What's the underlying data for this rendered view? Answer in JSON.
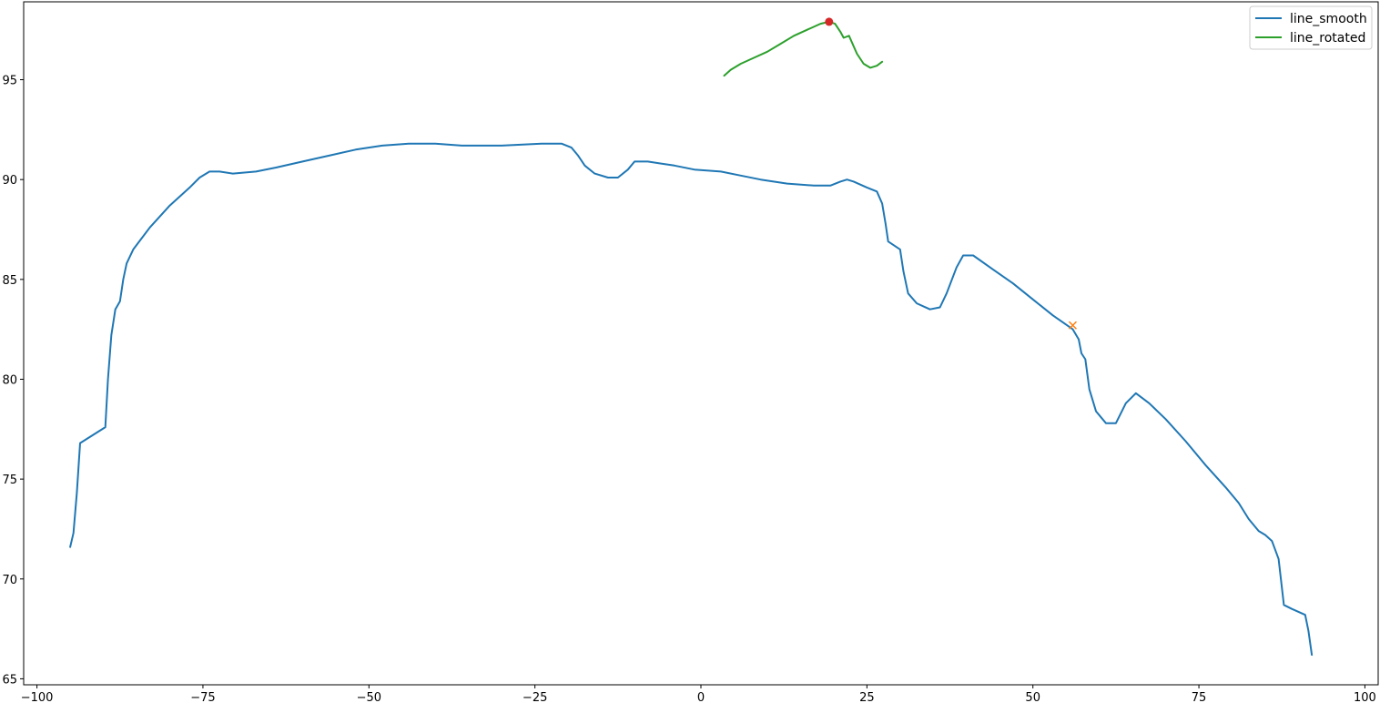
{
  "chart_data": {
    "type": "line",
    "title": "",
    "xlabel": "",
    "ylabel": "",
    "xlim": [
      -102,
      102
    ],
    "ylim": [
      64.7,
      98.9
    ],
    "x_ticks": [
      {
        "value": -100,
        "label": "−100"
      },
      {
        "value": -75,
        "label": "−75"
      },
      {
        "value": -50,
        "label": "−50"
      },
      {
        "value": -25,
        "label": "−25"
      },
      {
        "value": 0,
        "label": "0"
      },
      {
        "value": 25,
        "label": "25"
      },
      {
        "value": 50,
        "label": "50"
      },
      {
        "value": 75,
        "label": "75"
      },
      {
        "value": 100,
        "label": "100"
      }
    ],
    "y_ticks": [
      {
        "value": 65,
        "label": "65"
      },
      {
        "value": 70,
        "label": "70"
      },
      {
        "value": 75,
        "label": "75"
      },
      {
        "value": 80,
        "label": "80"
      },
      {
        "value": 85,
        "label": "85"
      },
      {
        "value": 90,
        "label": "90"
      },
      {
        "value": 95,
        "label": "95"
      }
    ],
    "grid": false,
    "legend_position": "top-right",
    "series": [
      {
        "name": "line_smooth",
        "color": "#1f77b4",
        "points": [
          [
            -95.0,
            71.6
          ],
          [
            -94.5,
            72.3
          ],
          [
            -94.0,
            74.3
          ],
          [
            -93.5,
            76.8
          ],
          [
            -89.7,
            77.6
          ],
          [
            -89.3,
            80.0
          ],
          [
            -88.8,
            82.2
          ],
          [
            -88.2,
            83.5
          ],
          [
            -87.5,
            83.9
          ],
          [
            -87.0,
            85.0
          ],
          [
            -86.5,
            85.8
          ],
          [
            -85.5,
            86.5
          ],
          [
            -83.0,
            87.6
          ],
          [
            -80.0,
            88.7
          ],
          [
            -77.0,
            89.6
          ],
          [
            -75.5,
            90.1
          ],
          [
            -74.0,
            90.4
          ],
          [
            -72.5,
            90.4
          ],
          [
            -70.5,
            90.3
          ],
          [
            -67.0,
            90.4
          ],
          [
            -64.0,
            90.6
          ],
          [
            -60.0,
            90.9
          ],
          [
            -56.0,
            91.2
          ],
          [
            -52.0,
            91.5
          ],
          [
            -48.0,
            91.7
          ],
          [
            -44.0,
            91.8
          ],
          [
            -40.0,
            91.8
          ],
          [
            -36.0,
            91.7
          ],
          [
            -30.0,
            91.7
          ],
          [
            -24.0,
            91.8
          ],
          [
            -21.0,
            91.8
          ],
          [
            -19.5,
            91.6
          ],
          [
            -18.5,
            91.2
          ],
          [
            -17.5,
            90.7
          ],
          [
            -16.0,
            90.3
          ],
          [
            -14.0,
            90.1
          ],
          [
            -12.5,
            90.1
          ],
          [
            -11.0,
            90.5
          ],
          [
            -10.0,
            90.9
          ],
          [
            -8.0,
            90.9
          ],
          [
            -6.0,
            90.8
          ],
          [
            -4.0,
            90.7
          ],
          [
            -1.0,
            90.5
          ],
          [
            3.0,
            90.4
          ],
          [
            6.0,
            90.2
          ],
          [
            9.0,
            90.0
          ],
          [
            13.0,
            89.8
          ],
          [
            17.0,
            89.7
          ],
          [
            19.5,
            89.7
          ],
          [
            21.0,
            89.9
          ],
          [
            22.0,
            90.0
          ],
          [
            23.0,
            89.9
          ],
          [
            25.0,
            89.6
          ],
          [
            26.5,
            89.4
          ],
          [
            27.3,
            88.8
          ],
          [
            27.8,
            87.8
          ],
          [
            28.2,
            86.9
          ],
          [
            30.0,
            86.5
          ],
          [
            30.5,
            85.4
          ],
          [
            31.2,
            84.3
          ],
          [
            32.5,
            83.8
          ],
          [
            34.5,
            83.5
          ],
          [
            36.0,
            83.6
          ],
          [
            37.0,
            84.3
          ],
          [
            38.5,
            85.6
          ],
          [
            39.5,
            86.2
          ],
          [
            41.0,
            86.2
          ],
          [
            44.0,
            85.5
          ],
          [
            47.0,
            84.8
          ],
          [
            50.0,
            84.0
          ],
          [
            53.0,
            83.2
          ],
          [
            56.0,
            82.5
          ],
          [
            56.9,
            82.0
          ],
          [
            57.3,
            81.3
          ],
          [
            57.9,
            81.0
          ],
          [
            58.5,
            79.5
          ],
          [
            59.5,
            78.4
          ],
          [
            61.0,
            77.8
          ],
          [
            62.5,
            77.8
          ],
          [
            64.0,
            78.8
          ],
          [
            65.5,
            79.3
          ],
          [
            67.5,
            78.8
          ],
          [
            70.0,
            78.0
          ],
          [
            73.0,
            76.9
          ],
          [
            76.0,
            75.7
          ],
          [
            79.0,
            74.6
          ],
          [
            81.0,
            73.8
          ],
          [
            82.5,
            73.0
          ],
          [
            84.0,
            72.4
          ],
          [
            85.0,
            72.2
          ],
          [
            86.0,
            71.9
          ],
          [
            87.0,
            71.0
          ],
          [
            87.8,
            68.7
          ],
          [
            89.0,
            68.5
          ],
          [
            91.0,
            68.2
          ],
          [
            91.5,
            67.4
          ],
          [
            92.0,
            66.2
          ]
        ]
      },
      {
        "name": "line_rotated",
        "color": "#2ca02c",
        "points": [
          [
            3.5,
            95.2
          ],
          [
            4.5,
            95.5
          ],
          [
            6.0,
            95.8
          ],
          [
            8.0,
            96.1
          ],
          [
            10.0,
            96.4
          ],
          [
            12.0,
            96.8
          ],
          [
            14.0,
            97.2
          ],
          [
            16.0,
            97.5
          ],
          [
            18.0,
            97.8
          ],
          [
            19.3,
            97.9
          ],
          [
            20.2,
            97.8
          ],
          [
            21.0,
            97.4
          ],
          [
            21.5,
            97.1
          ],
          [
            22.3,
            97.2
          ],
          [
            23.5,
            96.3
          ],
          [
            24.5,
            95.8
          ],
          [
            25.5,
            95.6
          ],
          [
            26.5,
            95.7
          ],
          [
            27.3,
            95.9
          ]
        ]
      }
    ],
    "markers": [
      {
        "type": "dot",
        "x": 19.3,
        "y": 97.9,
        "color": "#d62728"
      },
      {
        "type": "x",
        "x": 56.0,
        "y": 82.7,
        "color": "#ff7f0e"
      }
    ]
  }
}
